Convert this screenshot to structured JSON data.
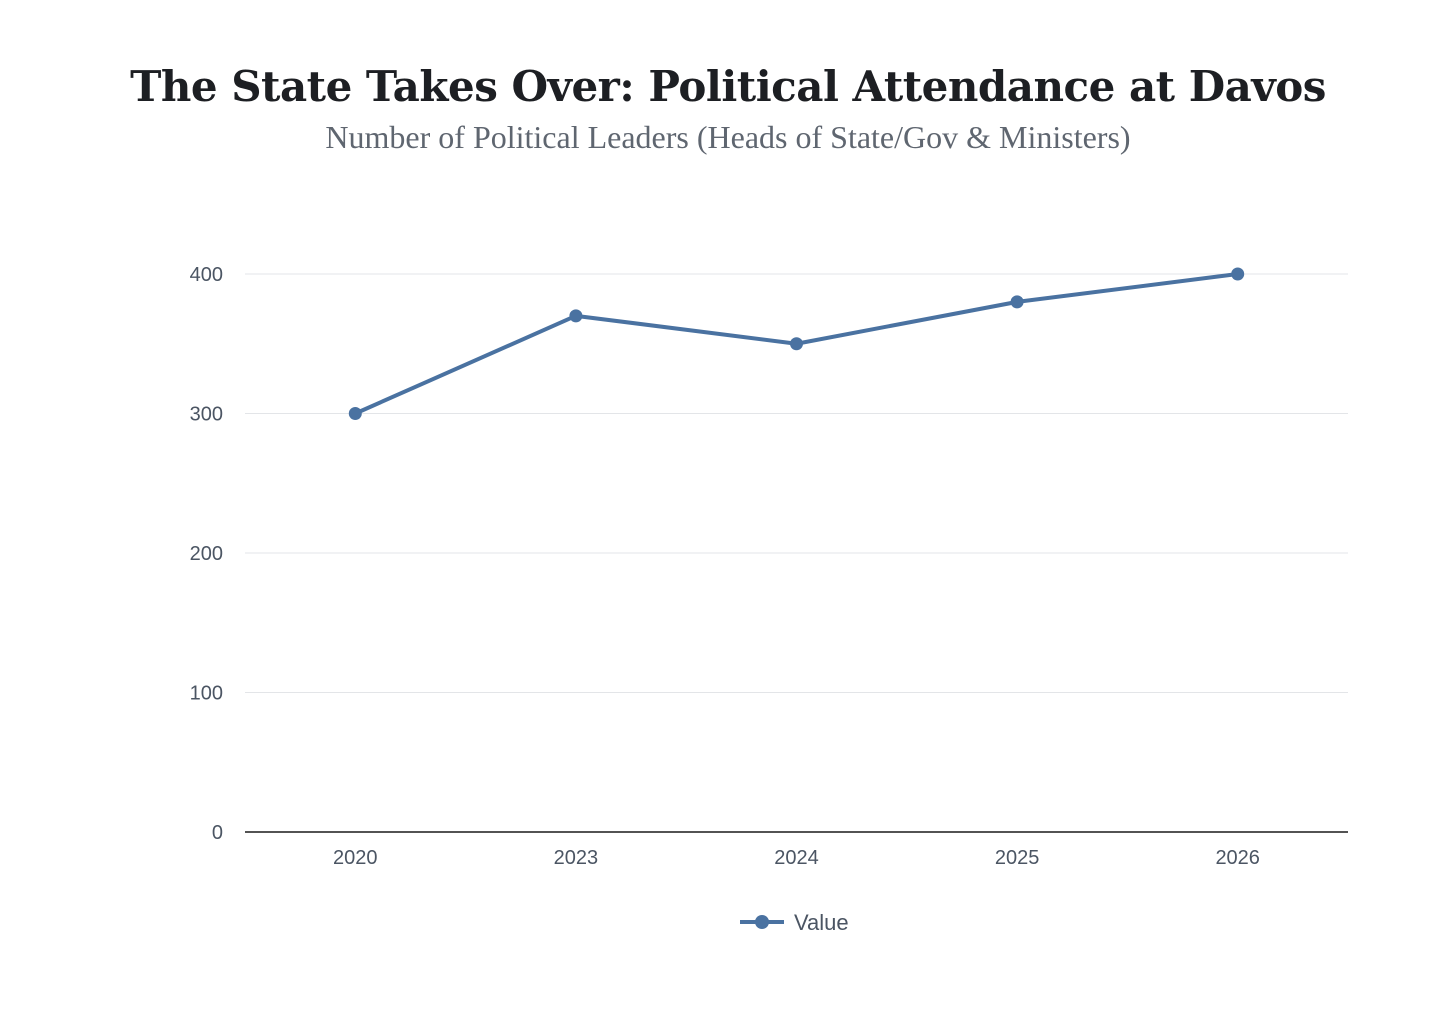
{
  "chart_data": {
    "type": "line",
    "title": "The State Takes Over: Political Attendance at Davos",
    "subtitle": "Number of Political Leaders (Heads of State/Gov & Ministers)",
    "categories": [
      "2020",
      "2023",
      "2024",
      "2025",
      "2026"
    ],
    "series": [
      {
        "name": "Value",
        "values": [
          300,
          370,
          350,
          380,
          400
        ]
      }
    ],
    "ylim": [
      0,
      400
    ],
    "yticks": [
      0,
      100,
      200,
      300,
      400
    ],
    "ytick_labels": [
      "0",
      "100",
      "200",
      "300",
      "400"
    ],
    "grid": true,
    "legend_position": "bottom-center",
    "colors": {
      "series": "#4a72a1",
      "grid": "#e3e5e8",
      "axis": "#1a1a1a"
    }
  }
}
